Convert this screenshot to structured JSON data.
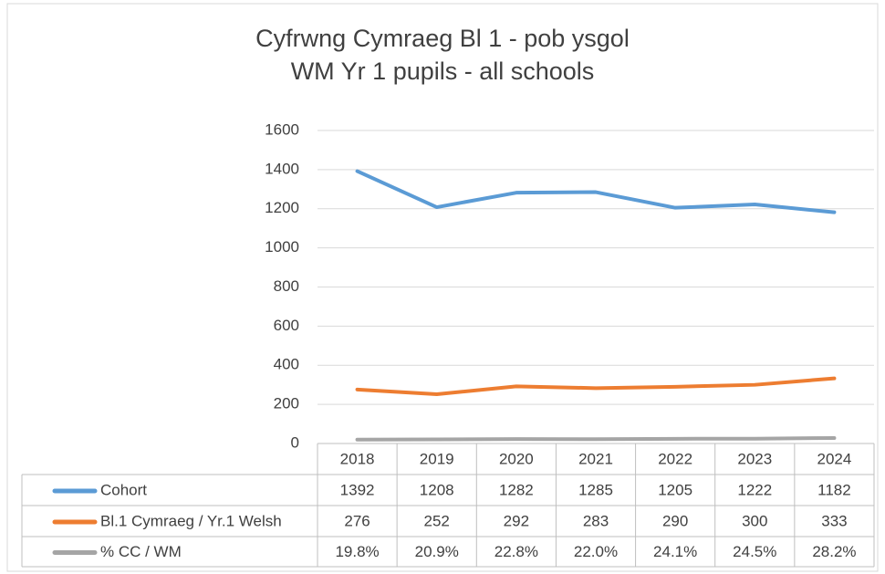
{
  "chart_data": {
    "type": "line",
    "title": [
      "Cyfrwng Cymraeg Bl 1 - pob ysgol",
      "WM Yr 1 pupils - all schools"
    ],
    "categories": [
      "2018",
      "2019",
      "2020",
      "2021",
      "2022",
      "2023",
      "2024"
    ],
    "series": [
      {
        "name": "Cohort",
        "color": "#5b9bd5",
        "values": [
          1392,
          1208,
          1282,
          1285,
          1205,
          1222,
          1182
        ]
      },
      {
        "name": "Bl.1 Cymraeg / Yr.1 Welsh",
        "color": "#ed7d31",
        "values": [
          276,
          252,
          292,
          283,
          290,
          300,
          333
        ]
      },
      {
        "name": "% CC / WM",
        "color": "#a5a5a5",
        "values": [
          19.8,
          20.9,
          22.8,
          22.0,
          24.1,
          24.5,
          28.2
        ],
        "value_labels": [
          "19.8%",
          "20.9%",
          "22.8%",
          "22.0%",
          "24.1%",
          "24.5%",
          "28.2%"
        ]
      }
    ],
    "ylim": [
      0,
      1600
    ],
    "yticks": [
      0,
      200,
      400,
      600,
      800,
      1000,
      1200,
      1400,
      1600
    ],
    "grid": true,
    "data_table": true
  }
}
